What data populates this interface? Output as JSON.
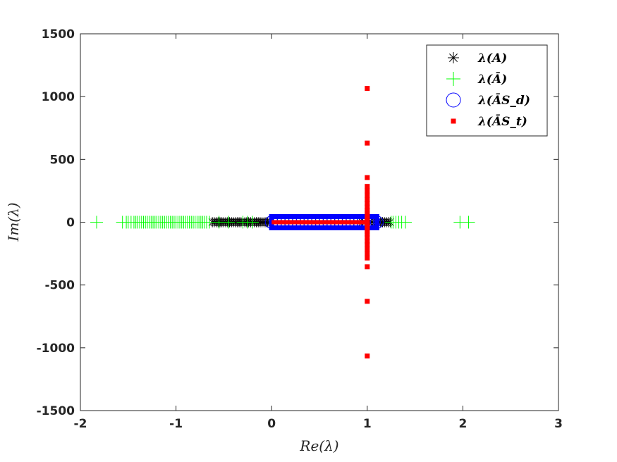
{
  "chart_data": {
    "type": "scatter",
    "xlabel": "Re(λ)",
    "ylabel": "Im(λ)",
    "xlim": [
      -2,
      3
    ],
    "ylim": [
      -1500,
      1500
    ],
    "x_ticks": [
      -2,
      -1,
      0,
      1,
      2,
      3
    ],
    "y_ticks": [
      -1500,
      -1000,
      -500,
      0,
      500,
      1000,
      1500
    ],
    "x_tick_labels": [
      "-2",
      "-1",
      "0",
      "1",
      "2",
      "3"
    ],
    "y_tick_labels": [
      "-1500",
      "-1000",
      "-500",
      "0",
      "500",
      "1000",
      "1500"
    ],
    "grid": false,
    "legend_position": "top-right",
    "series": [
      {
        "name": "λ(A)",
        "marker": "asterisk",
        "color": "#000000",
        "x": [
          -0.62,
          -0.6,
          -0.58,
          -0.56,
          -0.54,
          -0.52,
          -0.5,
          -0.48,
          -0.46,
          -0.44,
          -0.42,
          -0.4,
          -0.38,
          -0.36,
          -0.34,
          -0.32,
          -0.3,
          -0.28,
          -0.26,
          -0.24,
          -0.22,
          -0.2,
          -0.18,
          -0.16,
          -0.14,
          -0.12,
          -0.1,
          -0.08,
          -0.06,
          -0.04,
          -0.02,
          0.95,
          0.98,
          1.02,
          1.05,
          1.08,
          1.1,
          1.12,
          1.14,
          1.16,
          1.18,
          1.2,
          1.22,
          1.24
        ],
        "y": [
          0,
          0,
          0,
          0,
          0,
          0,
          0,
          0,
          0,
          0,
          0,
          0,
          0,
          0,
          0,
          0,
          0,
          0,
          0,
          0,
          0,
          0,
          0,
          0,
          0,
          0,
          0,
          0,
          0,
          0,
          0,
          0,
          0,
          0,
          0,
          0,
          0,
          0,
          0,
          0,
          0,
          0,
          0,
          0
        ]
      },
      {
        "name": "λ(Ā)",
        "marker": "plus",
        "color": "#00ff00",
        "x": [
          -1.83,
          -1.56,
          -1.52,
          -1.5,
          -1.47,
          -1.44,
          -1.42,
          -1.4,
          -1.38,
          -1.36,
          -1.34,
          -1.32,
          -1.3,
          -1.28,
          -1.26,
          -1.24,
          -1.22,
          -1.2,
          -1.18,
          -1.16,
          -1.14,
          -1.12,
          -1.1,
          -1.08,
          -1.06,
          -1.04,
          -1.02,
          -1.0,
          -0.98,
          -0.96,
          -0.94,
          -0.92,
          -0.9,
          -0.88,
          -0.86,
          -0.84,
          -0.82,
          -0.8,
          -0.78,
          -0.76,
          -0.74,
          -0.72,
          -0.7,
          -0.68,
          -0.65,
          -0.55,
          -0.45,
          -0.3,
          -0.25,
          -0.2,
          1.25,
          1.27,
          1.3,
          1.33,
          1.36,
          1.4,
          1.97,
          2.06
        ],
        "y": [
          0,
          0,
          0,
          0,
          0,
          0,
          0,
          0,
          0,
          0,
          0,
          0,
          0,
          0,
          0,
          0,
          0,
          0,
          0,
          0,
          0,
          0,
          0,
          0,
          0,
          0,
          0,
          0,
          0,
          0,
          0,
          0,
          0,
          0,
          0,
          0,
          0,
          0,
          0,
          0,
          0,
          0,
          0,
          0,
          0,
          0,
          0,
          0,
          0,
          0,
          0,
          0,
          0,
          0,
          0,
          0,
          0,
          0
        ]
      },
      {
        "name": "λ(ĀS_d)",
        "marker": "circle",
        "color": "#0000ff",
        "x": [
          0,
          0.04,
          0.08,
          0.12,
          0.16,
          0.2,
          0.24,
          0.28,
          0.32,
          0.36,
          0.4,
          0.44,
          0.48,
          0.52,
          0.56,
          0.6,
          0.64,
          0.68,
          0.72,
          0.76,
          0.8,
          0.84,
          0.88,
          0.92,
          0.96,
          1.0,
          1.04,
          1.07,
          1.1
        ],
        "y": [
          0,
          0,
          0,
          0,
          0,
          0,
          0,
          0,
          0,
          0,
          0,
          0,
          0,
          0,
          0,
          0,
          0,
          0,
          0,
          0,
          0,
          0,
          0,
          0,
          0,
          0,
          0,
          0,
          0
        ]
      },
      {
        "name": "λ(ĀS_t)",
        "marker": "square",
        "color": "#ff0000",
        "x": [
          1,
          1,
          1,
          1,
          1,
          1,
          1,
          1,
          1,
          1,
          1,
          1,
          1,
          1,
          1,
          1,
          1,
          1,
          1,
          1,
          1,
          1,
          1,
          1,
          1,
          1,
          1,
          1,
          1,
          1,
          1,
          1,
          1,
          1,
          1,
          1,
          1,
          1,
          1,
          1,
          1,
          1,
          1,
          1,
          1,
          1,
          1,
          1,
          1,
          1,
          1,
          1,
          1,
          1,
          1,
          1,
          1
        ],
        "y": [
          1065,
          630,
          355,
          285,
          250,
          215,
          180,
          150,
          120,
          95,
          75,
          55,
          40,
          28,
          18,
          10,
          -10,
          -18,
          -28,
          -40,
          -55,
          -75,
          -95,
          -120,
          -150,
          -180,
          -215,
          -250,
          -285,
          -355,
          -630,
          -1065,
          0.02,
          0.1,
          0.15,
          0.2,
          0.25,
          0.3,
          0.35,
          0.4,
          0.45,
          0.5,
          0.55,
          0.6,
          0.65,
          0.7,
          0.75,
          0.8,
          0.85,
          0.9,
          0.95,
          0,
          0,
          0,
          0,
          0,
          0
        ],
        "x_extra_note": ""
      }
    ]
  }
}
